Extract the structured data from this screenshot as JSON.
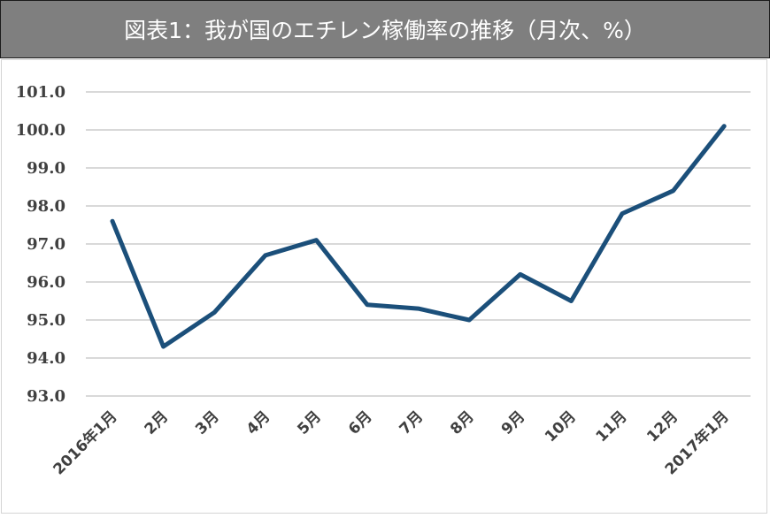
{
  "title": "図表1：我が国のエチレン稼働率の推移（月次、%）",
  "colors": {
    "title_bg": "#7f7f7f",
    "title_text": "#ffffff",
    "line": "#1b4f7a",
    "grid": "#d9d9d9",
    "tick_text": "#404040"
  },
  "chart_data": {
    "type": "line",
    "title": "図表1：我が国のエチレン稼働率の推移（月次、%）",
    "xlabel": "",
    "ylabel": "",
    "ylim": [
      93.0,
      101.0
    ],
    "yticks": [
      "93.0",
      "94.0",
      "95.0",
      "96.0",
      "97.0",
      "98.0",
      "99.0",
      "100.0",
      "101.0"
    ],
    "categories": [
      "2016年1月",
      "2月",
      "3月",
      "4月",
      "5月",
      "6月",
      "7月",
      "8月",
      "9月",
      "10月",
      "11月",
      "12月",
      "2017年1月"
    ],
    "series": [
      {
        "name": "エチレン稼働率",
        "values": [
          97.6,
          94.3,
          95.2,
          96.7,
          97.1,
          95.4,
          95.3,
          95.0,
          96.2,
          95.5,
          97.8,
          98.4,
          100.1
        ]
      }
    ],
    "grid": true,
    "legend": "none"
  }
}
